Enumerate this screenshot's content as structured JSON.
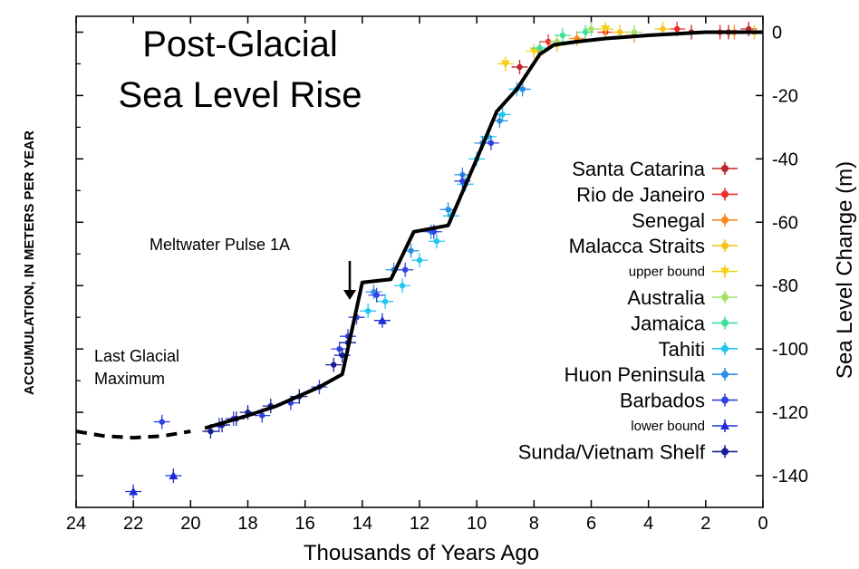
{
  "chart_data": {
    "type": "scatter",
    "title_lines": [
      "Post-Glacial",
      "Sea Level Rise"
    ],
    "xlabel": "Thousands of Years Ago",
    "ylabel_right": "Sea Level Change (m)",
    "ylabel_left": "ACCUMULATION, IN METERS PER YEAR",
    "xlim": [
      24,
      0
    ],
    "ylim": [
      -150,
      5
    ],
    "x_ticks": [
      "24",
      "22",
      "20",
      "18",
      "16",
      "14",
      "12",
      "10",
      "8",
      "6",
      "4",
      "2",
      "0"
    ],
    "y_ticks": [
      "0",
      "-20",
      "-40",
      "-60",
      "-80",
      "-100",
      "-120",
      "-140"
    ],
    "grid": false,
    "legend_position": "right",
    "annotations": [
      {
        "text": "Meltwater Pulse 1A",
        "x": 14.4,
        "y": -78
      },
      {
        "text_lines": [
          "Last Glacial",
          "Maximum"
        ],
        "x": 23,
        "y": -105
      }
    ],
    "curve": {
      "x": [
        19.5,
        18,
        17,
        16,
        15.5,
        14.7,
        14.0,
        13.0,
        12.2,
        11.0,
        10.0,
        9.3,
        8.6,
        7.8,
        7.3,
        6.5,
        5.5,
        4,
        2,
        0
      ],
      "y": [
        -125,
        -121,
        -118,
        -114,
        -112,
        -108,
        -79,
        -78,
        -63,
        -61,
        -40,
        -25,
        -18,
        -7,
        -4,
        -3,
        -2,
        -1,
        0,
        0
      ]
    },
    "dashed_curve": {
      "x": [
        24,
        23,
        22,
        21,
        20
      ],
      "y": [
        -126,
        -127.5,
        -128,
        -127.5,
        -126
      ]
    },
    "series": [
      {
        "name": "Santa Catarina",
        "marker": "dot",
        "color": "#c0262b",
        "x": [
          8.5,
          2.5,
          1.2,
          0.5
        ],
        "y": [
          -11,
          0,
          0,
          1
        ]
      },
      {
        "name": "Rio de Janeiro",
        "marker": "dot",
        "color": "#ef2b2b",
        "x": [
          7.5,
          5.5,
          3,
          1.5
        ],
        "y": [
          -3,
          0,
          1,
          0
        ]
      },
      {
        "name": "Senegal",
        "marker": "dot",
        "color": "#f7891e",
        "x": [
          7.8,
          6.5,
          4.5,
          1
        ],
        "y": [
          -6,
          -2,
          -1,
          0
        ]
      },
      {
        "name": "Malacca Straits",
        "marker": "dot",
        "color": "#f8c41b",
        "x": [
          7.2,
          5,
          3.5,
          0.3
        ],
        "y": [
          -4,
          0,
          1,
          0
        ]
      },
      {
        "name": "upper bound",
        "marker": "triangle-down",
        "color": "#f5d019",
        "x": [
          9,
          8,
          5.5
        ],
        "y": [
          -10,
          -6,
          1
        ]
      },
      {
        "name": "Australia",
        "marker": "dot",
        "color": "#a8e16a",
        "x": [
          7.2,
          6,
          4.5
        ],
        "y": [
          -3,
          1,
          0
        ]
      },
      {
        "name": "Jamaica",
        "marker": "dot",
        "color": "#3ee09a",
        "x": [
          7.8,
          7,
          6.2
        ],
        "y": [
          -5,
          -1,
          0
        ]
      },
      {
        "name": "Tahiti",
        "marker": "dot",
        "color": "#1ec8ee",
        "x": [
          13.8,
          13.2,
          12.6,
          12.0,
          11.4,
          10.9,
          10.4,
          10.0,
          9.6,
          9.1,
          8.6
        ],
        "y": [
          -88,
          -85,
          -80,
          -72,
          -66,
          -58,
          -48,
          -40,
          -33,
          -26,
          -18
        ]
      },
      {
        "name": "Huon Peninsula",
        "marker": "dot",
        "color": "#2b8fe4",
        "x": [
          13.6,
          12.9,
          12.3,
          11.6,
          11.0,
          10.5,
          9.8,
          9.2,
          8.4
        ],
        "y": [
          -82,
          -75,
          -69,
          -63,
          -56,
          -45,
          -35,
          -28,
          -18
        ]
      },
      {
        "name": "Barbados",
        "marker": "dot",
        "color": "#2f42e0",
        "x": [
          21,
          19,
          18.5,
          17.5,
          16.5,
          15.5,
          14.8,
          14.5,
          14.2,
          13.5,
          12.5,
          11.5,
          10.5,
          9.5
        ],
        "y": [
          -123,
          -124,
          -122,
          -121,
          -117,
          -112,
          -100,
          -96,
          -90,
          -83,
          -75,
          -63,
          -47,
          -35
        ]
      },
      {
        "name": "lower bound",
        "marker": "triangle",
        "color": "#1d2dd6",
        "x": [
          22,
          20.6,
          13.3
        ],
        "y": [
          -145,
          -140,
          -91
        ]
      },
      {
        "name": "Sunda/Vietnam Shelf",
        "marker": "dot",
        "color": "#141f93",
        "x": [
          19.3,
          18.9,
          18.4,
          18.0,
          17.2,
          16.2,
          15.0,
          14.7,
          14.5
        ],
        "y": [
          -126,
          -124,
          -122,
          -120,
          -118,
          -115,
          -105,
          -102,
          -98
        ]
      }
    ]
  }
}
